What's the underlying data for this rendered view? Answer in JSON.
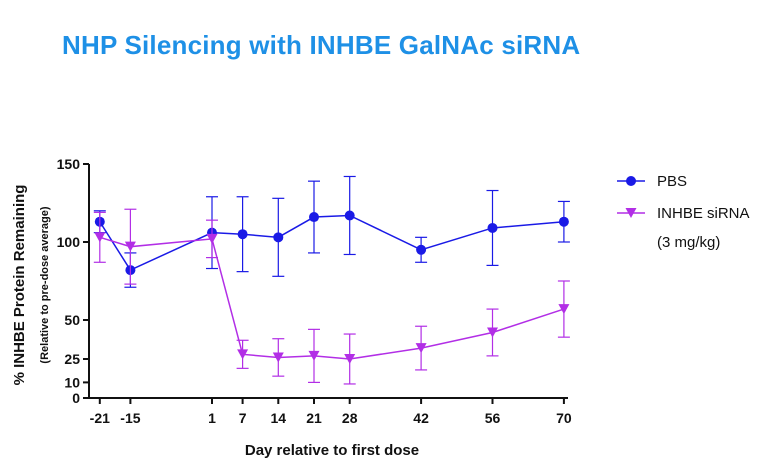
{
  "title": "NHP Silencing with INHBE GalNAc siRNA",
  "colors": {
    "title": "#1e90e6",
    "pbs": "#1a1ae6",
    "sirna": "#b22ee6"
  },
  "chart_data": {
    "type": "line",
    "title": "NHP Silencing with INHBE GalNAc siRNA",
    "xlabel": "Day relative to first dose",
    "ylabel": "% INHBE  Protein Remaining",
    "ylabel_sub": "(Relative to pre-dose average)",
    "xlim": [
      -23,
      72
    ],
    "ylim": [
      0,
      150
    ],
    "xticks": [
      -21,
      -15,
      1,
      7,
      14,
      21,
      28,
      42,
      56,
      70
    ],
    "xtick_labels": [
      "-21",
      "-15",
      "1",
      "7",
      "14",
      "21",
      "28",
      "42",
      "56",
      "70"
    ],
    "yticks": [
      0,
      10,
      25,
      50,
      100,
      150
    ],
    "ytick_labels": [
      "0",
      "10",
      "25",
      "50",
      "100",
      "150"
    ],
    "series": [
      {
        "name": "PBS",
        "marker": "circle",
        "x": [
          -21,
          -15,
          1,
          7,
          14,
          21,
          28,
          42,
          56,
          70
        ],
        "y": [
          113,
          82,
          106,
          105,
          103,
          116,
          117,
          95,
          109,
          113
        ],
        "err": [
          7,
          11,
          23,
          24,
          25,
          23,
          25,
          8,
          24,
          13
        ]
      },
      {
        "name": "INHBE siRNA",
        "name_line2": "(3 mg/kg)",
        "marker": "triangle-down",
        "x": [
          -21,
          -15,
          1,
          7,
          14,
          21,
          28,
          42,
          56,
          70
        ],
        "y": [
          103,
          97,
          102,
          28,
          26,
          27,
          25,
          32,
          42,
          57
        ],
        "err": [
          16,
          24,
          12,
          9,
          12,
          17,
          16,
          14,
          15,
          18
        ]
      }
    ],
    "legend": "right"
  }
}
